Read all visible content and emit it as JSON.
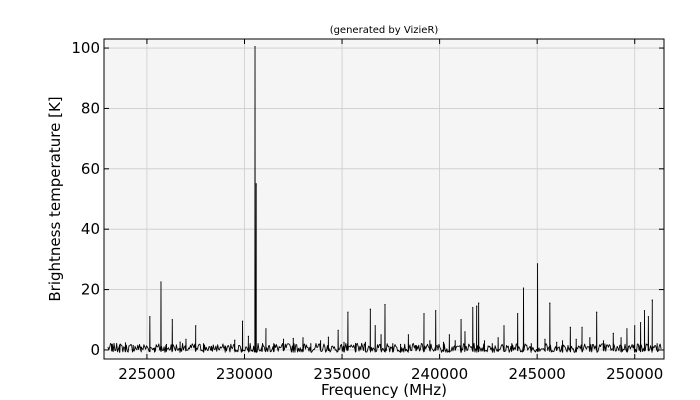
{
  "chart_data": {
    "type": "line",
    "title": "(generated by VizieR)",
    "xlabel": "Frequency (MHz)",
    "ylabel": "Brightness temperature [K]",
    "xlim": [
      222800,
      251500
    ],
    "ylim": [
      -3,
      103
    ],
    "xticks": [
      225000,
      230000,
      235000,
      240000,
      245000,
      250000
    ],
    "yticks": [
      0,
      20,
      40,
      60,
      80,
      100
    ],
    "grid": true,
    "series": [
      {
        "color": "#000000",
        "baseline": [
          -0.8,
          1.2
        ],
        "points": [
          [
            223200,
            0.8
          ],
          [
            223600,
            1.6
          ],
          [
            223900,
            2.3
          ],
          [
            224300,
            1.4
          ],
          [
            224700,
            0.9
          ],
          [
            225150,
            11.0
          ],
          [
            225400,
            0.6
          ],
          [
            225720,
            22.5
          ],
          [
            226000,
            1.8
          ],
          [
            226300,
            10.0
          ],
          [
            226700,
            2.6
          ],
          [
            227000,
            3.5
          ],
          [
            227500,
            8.0
          ],
          [
            227900,
            2.0
          ],
          [
            228300,
            1.0
          ],
          [
            229000,
            1.3
          ],
          [
            229500,
            3.2
          ],
          [
            229900,
            9.5
          ],
          [
            230200,
            4.5
          ],
          [
            230540,
            100.5
          ],
          [
            230600,
            55.0
          ],
          [
            230900,
            1.2
          ],
          [
            231100,
            7.0
          ],
          [
            231500,
            2.0
          ],
          [
            232000,
            3.5
          ],
          [
            232500,
            3.8
          ],
          [
            233000,
            4.0
          ],
          [
            233400,
            2.0
          ],
          [
            233900,
            3.0
          ],
          [
            234300,
            4.2
          ],
          [
            234800,
            6.5
          ],
          [
            235100,
            2.5
          ],
          [
            235300,
            12.5
          ],
          [
            235700,
            1.3
          ],
          [
            236200,
            2.5
          ],
          [
            236450,
            13.5
          ],
          [
            236700,
            8.0
          ],
          [
            237000,
            5.0
          ],
          [
            237200,
            15.0
          ],
          [
            237600,
            2.0
          ],
          [
            238000,
            1.8
          ],
          [
            238400,
            5.0
          ],
          [
            238800,
            1.4
          ],
          [
            239200,
            12.0
          ],
          [
            239500,
            3.0
          ],
          [
            239800,
            13.0
          ],
          [
            240200,
            2.5
          ],
          [
            240500,
            5.0
          ],
          [
            240800,
            3.0
          ],
          [
            241100,
            10.0
          ],
          [
            241300,
            6.0
          ],
          [
            241700,
            14.0
          ],
          [
            241900,
            14.5
          ],
          [
            242000,
            15.5
          ],
          [
            242300,
            3.0
          ],
          [
            242700,
            2.0
          ],
          [
            243000,
            4.0
          ],
          [
            243300,
            8.0
          ],
          [
            243700,
            2.0
          ],
          [
            244000,
            12.0
          ],
          [
            244300,
            20.5
          ],
          [
            244700,
            2.0
          ],
          [
            245020,
            28.5
          ],
          [
            245400,
            3.5
          ],
          [
            245650,
            15.5
          ],
          [
            246000,
            2.5
          ],
          [
            246300,
            3.0
          ],
          [
            246700,
            7.5
          ],
          [
            247000,
            3.5
          ],
          [
            247300,
            7.5
          ],
          [
            247700,
            4.0
          ],
          [
            248050,
            12.5
          ],
          [
            248400,
            3.0
          ],
          [
            248900,
            5.5
          ],
          [
            249300,
            4.0
          ],
          [
            249600,
            7.0
          ],
          [
            250000,
            8.0
          ],
          [
            250300,
            9.0
          ],
          [
            250500,
            13.0
          ],
          [
            250700,
            11.0
          ],
          [
            250900,
            16.5
          ],
          [
            251150,
            2.0
          ]
        ]
      }
    ]
  }
}
